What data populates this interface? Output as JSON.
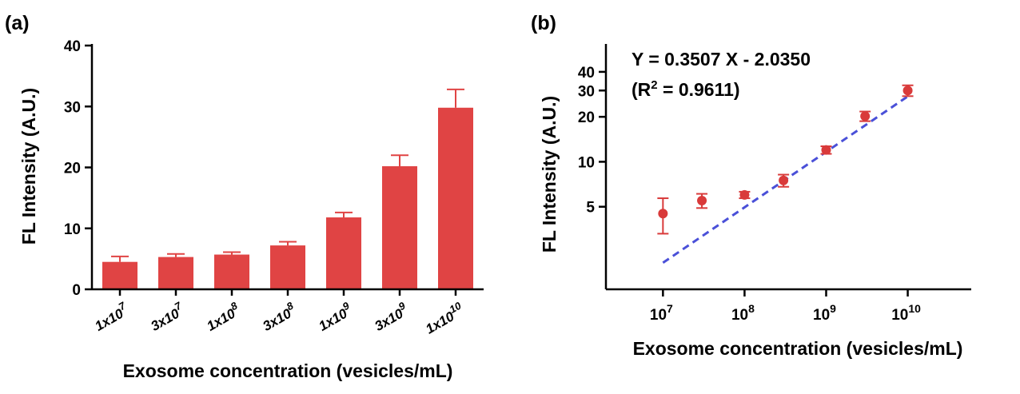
{
  "colors": {
    "bar": "#e04444",
    "marker": "#d93a3a",
    "fit": "#4a50d8",
    "axis": "#000000"
  },
  "chart_data": [
    {
      "panel": "(a)",
      "type": "bar",
      "categories": [
        {
          "base": "1x10",
          "exp": "7"
        },
        {
          "base": "3x10",
          "exp": "7"
        },
        {
          "base": "1x10",
          "exp": "8"
        },
        {
          "base": "3x10",
          "exp": "8"
        },
        {
          "base": "1x10",
          "exp": "9"
        },
        {
          "base": "3x10",
          "exp": "9"
        },
        {
          "base": "1x10",
          "exp": "10"
        }
      ],
      "values": [
        4.5,
        5.3,
        5.7,
        7.2,
        11.8,
        20.2,
        29.8
      ],
      "errors": [
        0.9,
        0.5,
        0.4,
        0.6,
        0.8,
        1.8,
        3.0
      ],
      "ylim": [
        0,
        40
      ],
      "yticks": [
        0,
        10,
        20,
        30,
        40
      ],
      "xlabel": "Exosome concentration (vesicles/mL)",
      "ylabel": "FL Intensity (A.U.)"
    },
    {
      "panel": "(b)",
      "type": "scatter",
      "x": [
        10000000,
        30000000,
        100000000,
        300000000,
        1000000000,
        3000000000,
        10000000000
      ],
      "y": [
        4.5,
        5.5,
        6.0,
        7.5,
        12.0,
        20.2,
        30.0
      ],
      "y_err": [
        1.2,
        0.6,
        0.3,
        0.7,
        0.7,
        1.5,
        2.5
      ],
      "x_scale": "log",
      "y_scale": "log",
      "xlim": [
        2000000,
        60000000000
      ],
      "ylim": [
        1.4,
        60
      ],
      "xticks": [
        {
          "base": "10",
          "exp": "7",
          "value": 10000000
        },
        {
          "base": "10",
          "exp": "8",
          "value": 100000000
        },
        {
          "base": "10",
          "exp": "9",
          "value": 1000000000
        },
        {
          "base": "10",
          "exp": "10",
          "value": 10000000000
        }
      ],
      "yticks": [
        5,
        10,
        20,
        30,
        40
      ],
      "fit": {
        "slope": 0.3507,
        "intercept": -2.035,
        "x_range": [
          10000000,
          10000000000
        ]
      },
      "equation": "Y = 0.3507 X - 2.0350",
      "r2": {
        "prefix": "(R",
        "sup": "2",
        "suffix": " = 0.9611)"
      },
      "xlabel": "Exosome concentration (vesicles/mL)",
      "ylabel": "FL Intensity (A.U.)"
    }
  ]
}
